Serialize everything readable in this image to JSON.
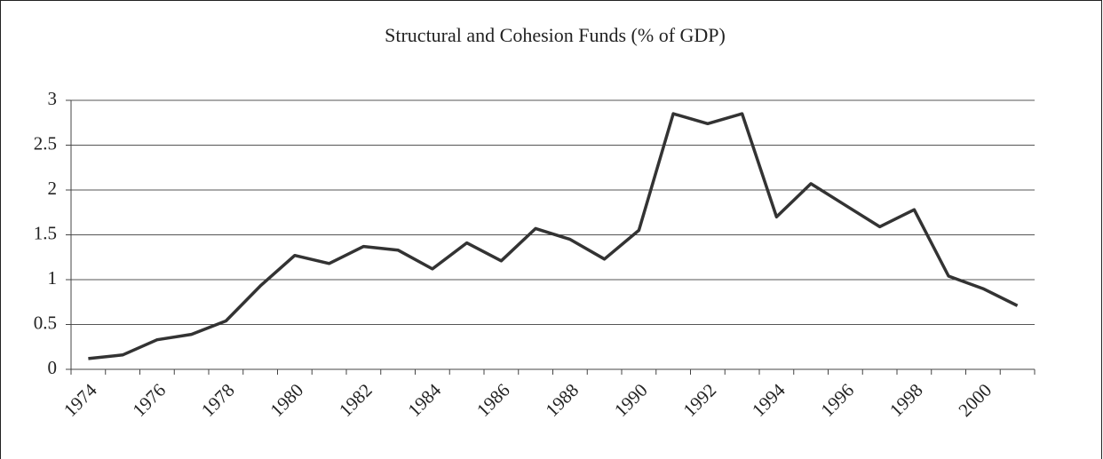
{
  "chart_data": {
    "type": "line",
    "title": "Structural and Cohesion Funds (% of GDP)",
    "categories": [
      "1974",
      null,
      "1976",
      null,
      "1978",
      null,
      "1980",
      null,
      "1982",
      null,
      "1984",
      null,
      "1986",
      null,
      "1988",
      null,
      "1990",
      null,
      "1992",
      null,
      "1994",
      null,
      "1996",
      null,
      "1998",
      null,
      "2000",
      null
    ],
    "values": [
      0.12,
      0.16,
      0.33,
      0.39,
      0.54,
      0.93,
      1.27,
      1.18,
      1.37,
      1.33,
      1.12,
      1.41,
      1.21,
      1.57,
      1.45,
      1.23,
      1.55,
      2.85,
      2.74,
      2.85,
      1.7,
      2.07,
      1.83,
      1.59,
      1.78,
      1.04,
      0.9,
      0.71
    ],
    "color": "#333333",
    "ylim": [
      0,
      3
    ],
    "yticks": [
      0,
      0.5,
      1,
      1.5,
      2,
      2.5,
      3
    ],
    "grid": true
  }
}
